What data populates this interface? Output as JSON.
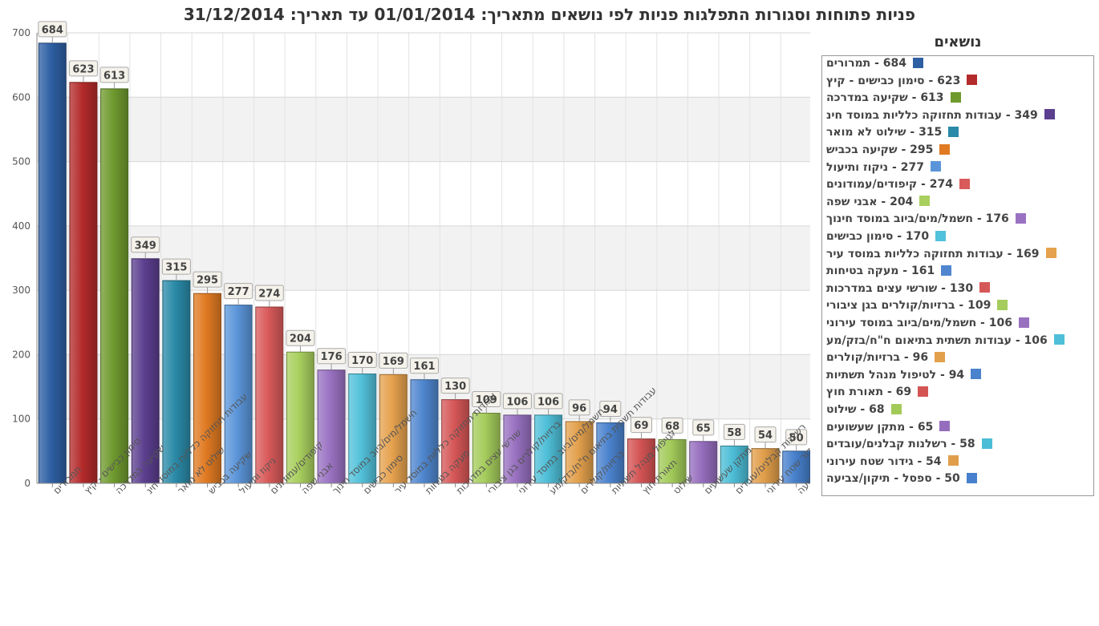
{
  "chart_data": {
    "type": "bar",
    "title": "פניות פתוחות וסגורות התפלגות פניות לפי נושאים מתאריך: 01/01/2014 עד תאריך: 31/12/2014",
    "legend_title": "נושאים",
    "legend_placement": "right",
    "grid": true,
    "ylim": [
      0,
      700
    ],
    "yticks": [
      0,
      100,
      200,
      300,
      400,
      500,
      600,
      700
    ],
    "categories": [
      "תמרורים",
      "סימון כבישים - קיץ",
      "שקיעה במדרכה",
      "עבודות תחזוקה כלליות במוסד חינ",
      "שילוט לא מואר",
      "שקיעה בכביש",
      "ניקוז ותיעול",
      "קיפודים/עמודונים",
      "אבני שפה",
      "חשמל/מים/ביוב במוסד חינוך",
      "סימון כבישים",
      "עבודות תחזוקה כלליות במוסד עיר",
      "מעקה בטיחות",
      "שורשי עצים במדרכות",
      "ברזיות/קולרים בגן ציבורי",
      "חשמל/מים/ביוב במוסד עירוני",
      "עבודות תשתית בתיאום ח\"ח/בזק/מע",
      "ברזיות/קולרים",
      "לטיפול מנהל תשתיות",
      "תאורת חוץ",
      "שילוט",
      "מתקן שעשועים",
      "רשלנות קבלנים/עובדים",
      "גידור שטח עירוני",
      "ספסל - תיקון/צביעה"
    ],
    "values": [
      684,
      623,
      613,
      349,
      315,
      295,
      277,
      274,
      204,
      176,
      170,
      169,
      161,
      130,
      109,
      106,
      106,
      96,
      94,
      69,
      68,
      65,
      58,
      54,
      50
    ],
    "data_labels": [
      "684",
      "623",
      "613",
      "349",
      "315",
      "295",
      "277",
      "274",
      "204",
      "176",
      "170",
      "169",
      "161",
      "130",
      "109",
      "106",
      "106",
      "96",
      "94",
      "69",
      "68",
      "65",
      "58",
      "54",
      "50"
    ],
    "colors": [
      "#2e5fa3",
      "#b42b2b",
      "#6f9a2e",
      "#5c3f8f",
      "#2a8aa8",
      "#e07a22",
      "#5b95d9",
      "#d95a5a",
      "#a9cf5e",
      "#9a72c2",
      "#52c1da",
      "#e6a24e",
      "#4f86cf",
      "#d65757",
      "#a5cc5c",
      "#9870c0",
      "#4fbfd8",
      "#e3a04c",
      "#4a82ce",
      "#d45454",
      "#a2ca59",
      "#956dbd",
      "#4cbdd6",
      "#e19e4a",
      "#4780cc"
    ],
    "legend_entries": [
      "684 - תמרורים",
      "623 - סימון כבישים - קיץ",
      "613 - שקיעה במדרכה",
      "349 - עבודות תחזוקה כלליות במוסד חינ",
      "315 - שילוט לא מואר",
      "295 - שקיעה בכביש",
      "277 - ניקוז ותיעול",
      "274 - קיפודים/עמודונים",
      "204 - אבני שפה",
      "176 - חשמל/מים/ביוב במוסד חינוך",
      "170 - סימון כבישים",
      "169 - עבודות תחזוקה כלליות במוסד עיר",
      "161 - מעקה בטיחות",
      "130 - שורשי עצים במדרכות",
      "109 - ברזיות/קולרים בגן ציבורי",
      "106 - חשמל/מים/ביוב במוסד עירוני",
      "106 - עבודות תשתית בתיאום ח\"ח/בזק/מע",
      "96 - ברזיות/קולרים",
      "94 - לטיפול מנהל תשתיות",
      "69 - תאורת חוץ",
      "68 - שילוט",
      "65 - מתקן שעשועים",
      "58 - רשלנות קבלנים/עובדים",
      "54 - גידור שטח עירוני",
      "50 - ספסל - תיקון/צביעה"
    ]
  }
}
